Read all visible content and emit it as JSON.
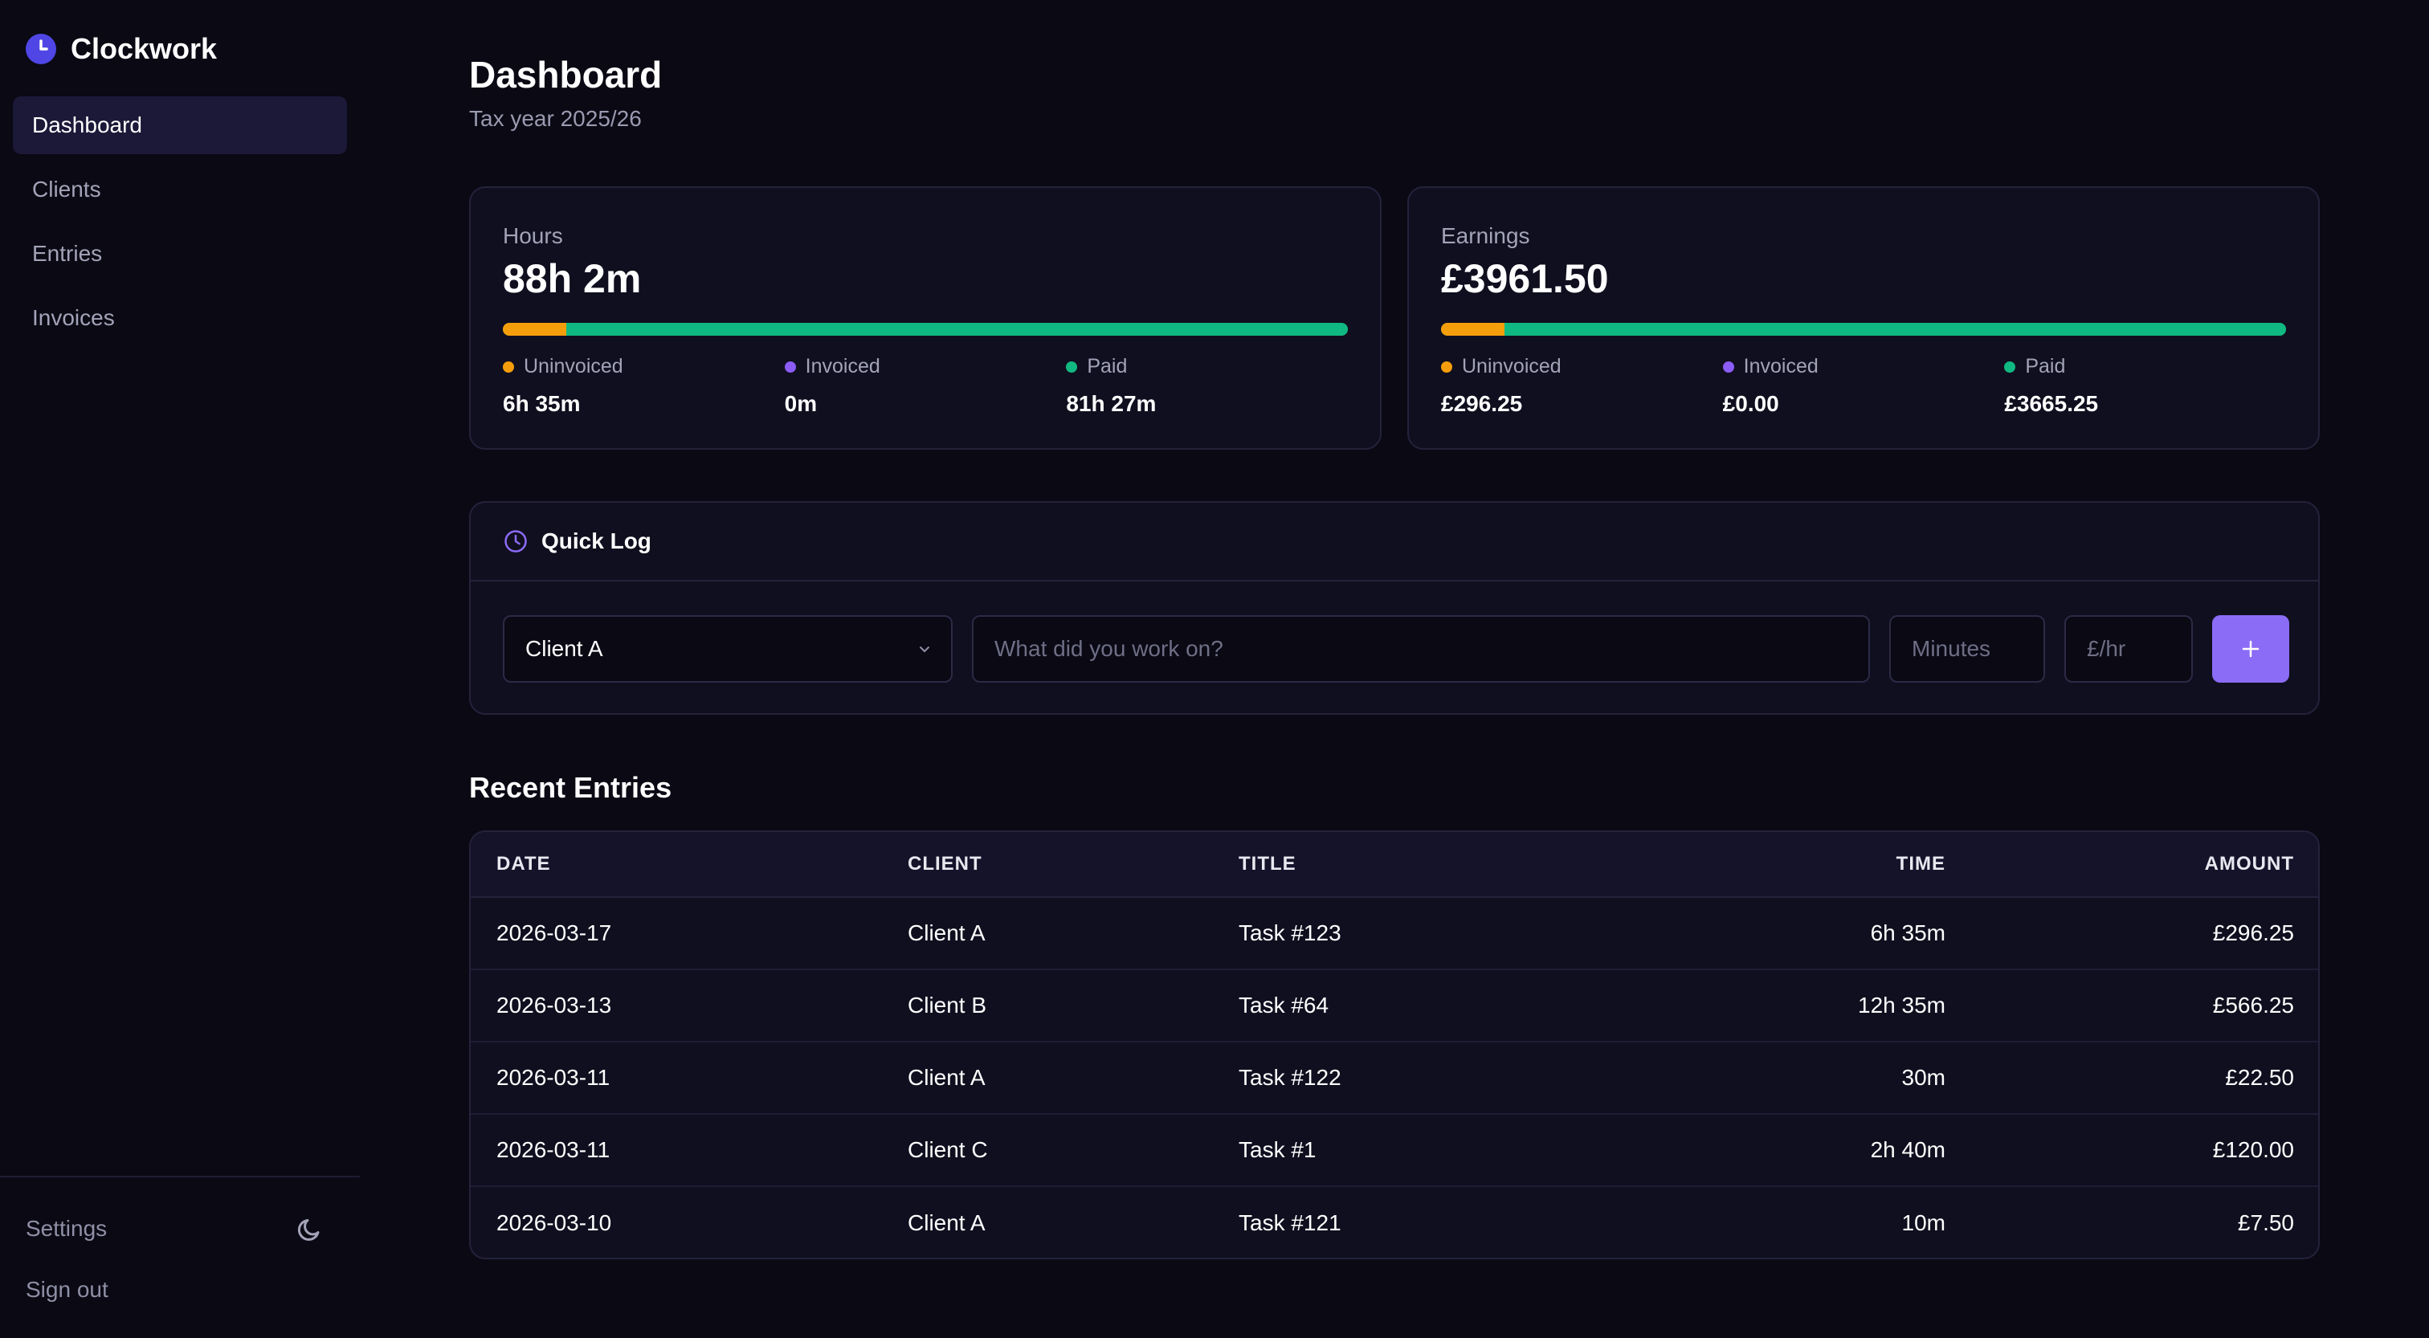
{
  "app": {
    "name": "Clockwork"
  },
  "sidebar": {
    "items": [
      {
        "label": "Dashboard",
        "active": true
      },
      {
        "label": "Clients",
        "active": false
      },
      {
        "label": "Entries",
        "active": false
      },
      {
        "label": "Invoices",
        "active": false
      }
    ],
    "settings_label": "Settings",
    "signout_label": "Sign out",
    "theme_icon": "moon-icon"
  },
  "page": {
    "title": "Dashboard",
    "subtitle": "Tax year 2025/26"
  },
  "hours": {
    "label": "Hours",
    "value": "88h 2m",
    "breakdown": [
      {
        "label": "Uninvoiced",
        "value": "6h 35m",
        "fraction": 0.075,
        "color": "#f59e0b"
      },
      {
        "label": "Invoiced",
        "value": "0m",
        "fraction": 0.0,
        "color": "#8b5cf6"
      },
      {
        "label": "Paid",
        "value": "81h 27m",
        "fraction": 0.925,
        "color": "#10b981"
      }
    ]
  },
  "earnings": {
    "label": "Earnings",
    "value": "£3961.50",
    "breakdown": [
      {
        "label": "Uninvoiced",
        "value": "£296.25",
        "fraction": 0.075,
        "color": "#f59e0b"
      },
      {
        "label": "Invoiced",
        "value": "£0.00",
        "fraction": 0.0,
        "color": "#8b5cf6"
      },
      {
        "label": "Paid",
        "value": "£3665.25",
        "fraction": 0.925,
        "color": "#10b981"
      }
    ]
  },
  "quick_log": {
    "title": "Quick Log",
    "client_selected": "Client A",
    "description_placeholder": "What did you work on?",
    "minutes_placeholder": "Minutes",
    "rate_placeholder": "£/hr",
    "add_label": "+"
  },
  "recent": {
    "title": "Recent Entries",
    "columns": [
      "DATE",
      "CLIENT",
      "TITLE",
      "TIME",
      "AMOUNT"
    ],
    "rows": [
      {
        "date": "2026-03-17",
        "client": "Client A",
        "title": "Task #123",
        "time": "6h 35m",
        "amount": "£296.25"
      },
      {
        "date": "2026-03-13",
        "client": "Client B",
        "title": "Task #64",
        "time": "12h 35m",
        "amount": "£566.25"
      },
      {
        "date": "2026-03-11",
        "client": "Client A",
        "title": "Task #122",
        "time": "30m",
        "amount": "£22.50"
      },
      {
        "date": "2026-03-11",
        "client": "Client C",
        "title": "Task #1",
        "time": "2h 40m",
        "amount": "£120.00"
      },
      {
        "date": "2026-03-10",
        "client": "Client A",
        "title": "Task #121",
        "time": "10m",
        "amount": "£7.50"
      }
    ]
  },
  "colors": {
    "accent": "#8b6cf6",
    "uninvoiced": "#f59e0b",
    "invoiced": "#8b5cf6",
    "paid": "#10b981"
  }
}
